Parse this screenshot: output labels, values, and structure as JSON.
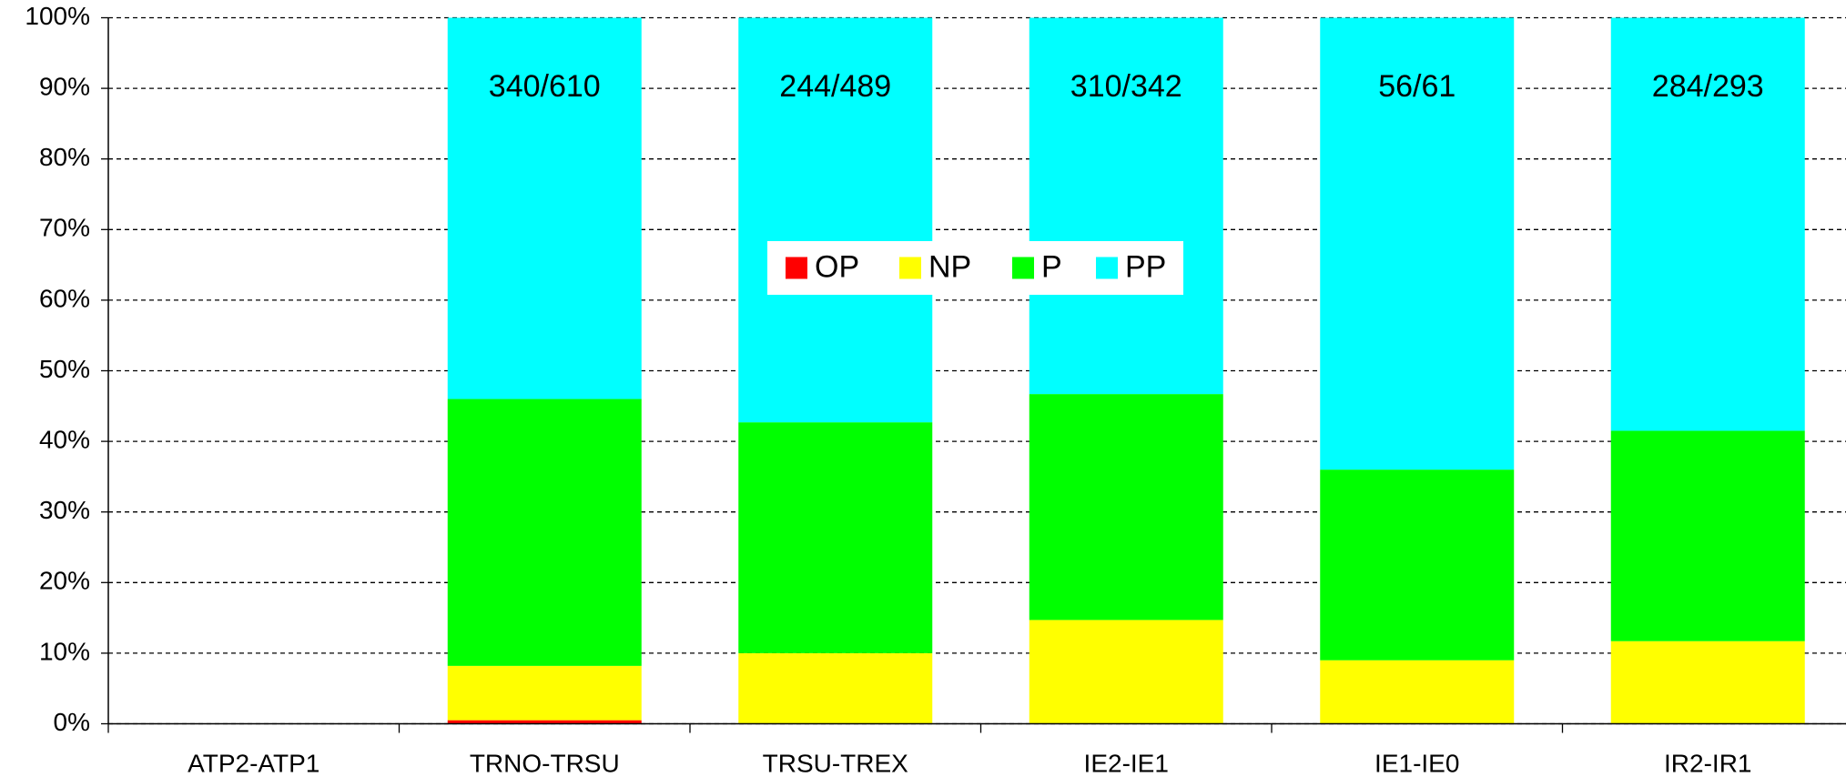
{
  "chart_data": {
    "type": "stacked_bar_percent",
    "categories": [
      "ATP2-ATP1",
      "TRNO-TRSU",
      "TRSU-TREX",
      "IE2-IE1",
      "IE1-IE0",
      "IR2-IR1"
    ],
    "series": [
      {
        "name": "OP",
        "color": "#ff0000",
        "values": [
          null,
          0.5,
          0,
          0,
          0,
          0
        ]
      },
      {
        "name": "NP",
        "color": "#ffff00",
        "values": [
          null,
          7.7,
          10,
          14.7,
          9,
          11.7
        ]
      },
      {
        "name": "P",
        "color": "#00ff00",
        "values": [
          null,
          37.8,
          32.7,
          32,
          27,
          29.8
        ]
      },
      {
        "name": "PP",
        "color": "#00ffff",
        "values": [
          null,
          54,
          57.3,
          53.3,
          64,
          58.5
        ]
      }
    ],
    "annotations": [
      null,
      "340/610",
      "244/489",
      "310/342",
      "56/61",
      "284/293"
    ],
    "ylim": [
      0,
      100
    ],
    "yticks": [
      {
        "value": 0,
        "label": "0%"
      },
      {
        "value": 10,
        "label": "10%"
      },
      {
        "value": 20,
        "label": "20%"
      },
      {
        "value": 30,
        "label": "30%"
      },
      {
        "value": 40,
        "label": "40%"
      },
      {
        "value": 50,
        "label": "50%"
      },
      {
        "value": 60,
        "label": "60%"
      },
      {
        "value": 70,
        "label": "70%"
      },
      {
        "value": 80,
        "label": "80%"
      },
      {
        "value": 90,
        "label": "90%"
      },
      {
        "value": 100,
        "label": "100%"
      }
    ],
    "grid": true,
    "legend": "center"
  }
}
